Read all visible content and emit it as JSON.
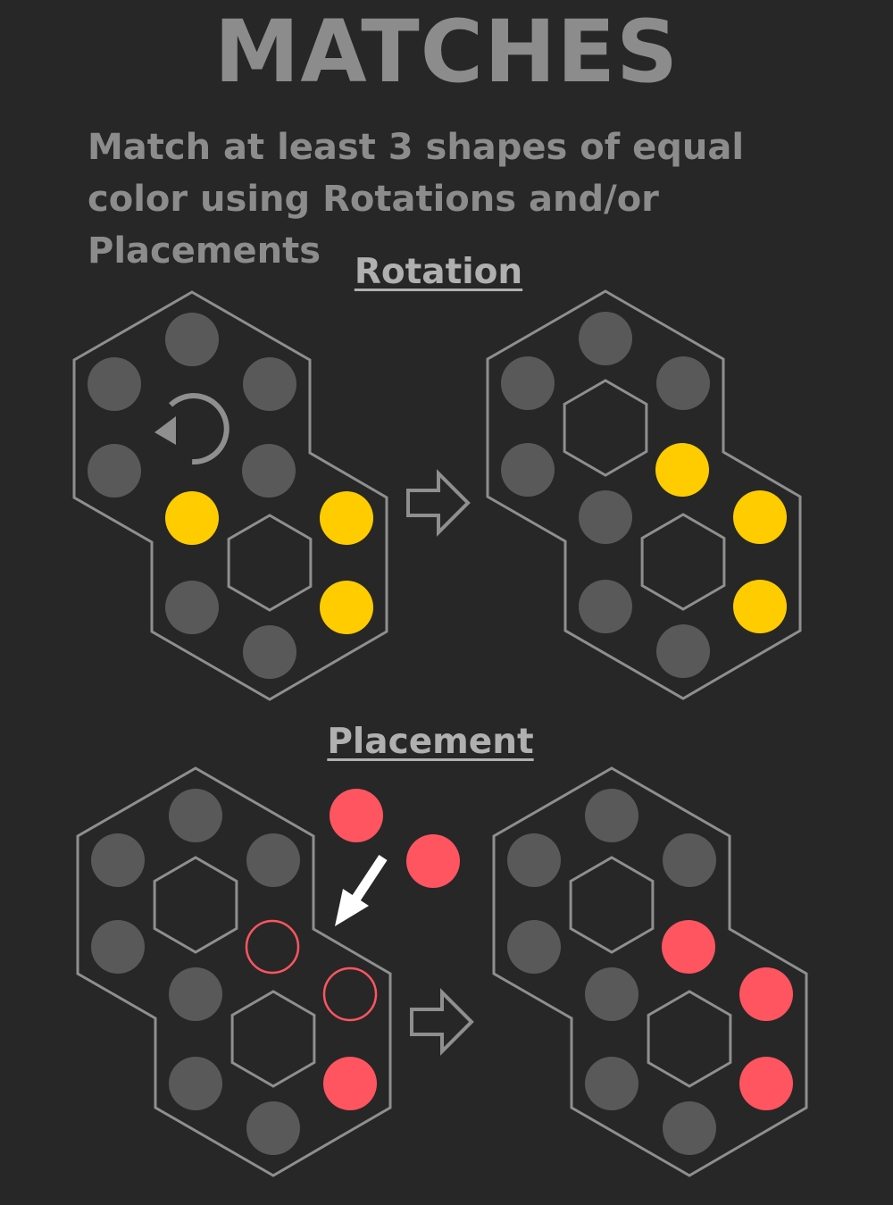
{
  "title": "MATCHES",
  "subtitle": "Match at least 3 shapes of equal color using Rotations and/or Placements",
  "sections": {
    "rotation": {
      "label": "Rotation"
    },
    "placement": {
      "label": "Placement"
    }
  },
  "colors": {
    "background": "#272727",
    "outline": "#8f8f8f",
    "empty_piece": "#595959",
    "yellow_piece": "#ffcc00",
    "red_piece": "#ff5560",
    "text": "#8c8c8c"
  },
  "icons": {
    "rotate": "counterclockwise-rotate-icon",
    "next": "arrow-right-outline-icon",
    "drop": "arrow-down-left-icon"
  },
  "boards": [
    {
      "id": "rotation-before",
      "cells": [
        "empty",
        "empty",
        "empty",
        "empty",
        "empty",
        "yellow",
        "empty",
        "empty",
        "yellow",
        "yellow"
      ],
      "rotate_hint": true,
      "ghost_cells": []
    },
    {
      "id": "rotation-after",
      "cells": [
        "empty",
        "empty",
        "empty",
        "empty",
        "yellow",
        "empty",
        "empty",
        "empty",
        "yellow",
        "yellow"
      ],
      "rotate_hint": false,
      "ghost_cells": []
    },
    {
      "id": "placement-before",
      "cells": [
        "empty",
        "empty",
        "empty",
        "empty",
        "ghost",
        "empty",
        "empty",
        "empty",
        "ghost",
        "red"
      ],
      "rotate_hint": false,
      "ghost_cells": [
        4,
        8
      ]
    },
    {
      "id": "placement-after",
      "cells": [
        "empty",
        "empty",
        "empty",
        "empty",
        "red",
        "empty",
        "empty",
        "empty",
        "red",
        "red"
      ],
      "rotate_hint": false,
      "ghost_cells": []
    }
  ],
  "floating_pieces": [
    "red",
    "red"
  ]
}
